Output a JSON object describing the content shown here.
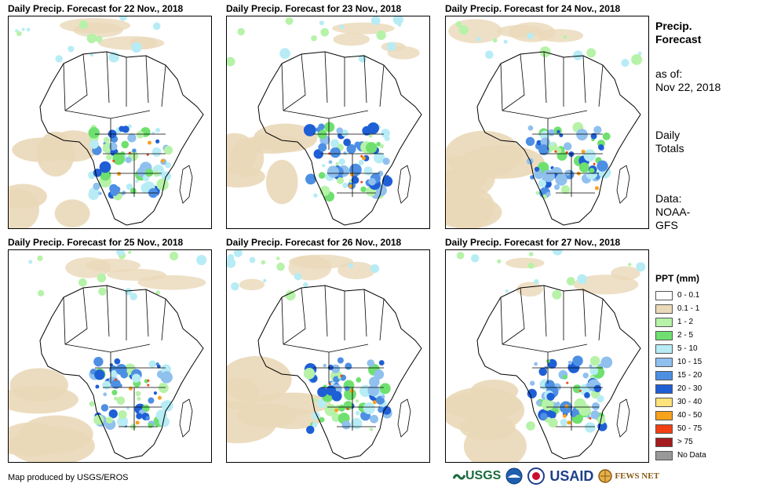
{
  "panels": [
    {
      "title": "Daily Precip. Forecast for 22 Nov., 2018"
    },
    {
      "title": "Daily Precip. Forecast for 23 Nov., 2018"
    },
    {
      "title": "Daily Precip. Forecast for 24 Nov., 2018"
    },
    {
      "title": "Daily Precip. Forecast for 25 Nov., 2018"
    },
    {
      "title": "Daily Precip. Forecast for 26 Nov., 2018"
    },
    {
      "title": "Daily Precip. Forecast for 27 Nov., 2018"
    }
  ],
  "side": {
    "title_line1": "Precip.",
    "title_line2": "Forecast",
    "asof_label": "as of:",
    "asof_date": "Nov 22, 2018",
    "daily_line1": "Daily",
    "daily_line2": "Totals",
    "data_line1": "Data:",
    "data_line2": "NOAA-",
    "data_line3": "GFS"
  },
  "legend": {
    "title": "PPT (mm)",
    "items": [
      {
        "label": "0 - 0.1",
        "color": "#ffffff"
      },
      {
        "label": "0.1 - 1",
        "color": "#ead8b8"
      },
      {
        "label": "1 - 2",
        "color": "#b6f2a8"
      },
      {
        "label": "2 - 5",
        "color": "#6fe06f"
      },
      {
        "label": "5 - 10",
        "color": "#b7ecf5"
      },
      {
        "label": "10 - 15",
        "color": "#8fc0ee"
      },
      {
        "label": "15 - 20",
        "color": "#4d8fe3"
      },
      {
        "label": "20 - 30",
        "color": "#1f5fd6"
      },
      {
        "label": "30 - 40",
        "color": "#fde37a"
      },
      {
        "label": "40 - 50",
        "color": "#f7a21c"
      },
      {
        "label": "50 - 75",
        "color": "#f24012"
      },
      {
        "label": "> 75",
        "color": "#a41c1c"
      },
      {
        "label": "No Data",
        "color": "#999999"
      }
    ]
  },
  "credit": "Map produced by USGS/EROS",
  "logos": {
    "usgs": "USGS",
    "usaid": "USAID",
    "fewsnet": "FEWS NET"
  }
}
